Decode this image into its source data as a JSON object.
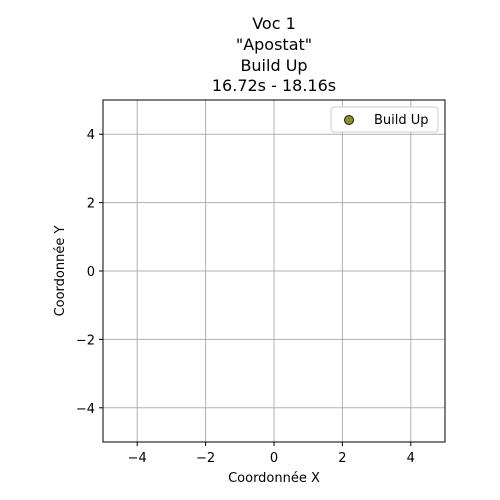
{
  "chart_data": {
    "type": "scatter",
    "title_lines": [
      "Voc 1",
      "\"Apostat\"",
      "Build Up",
      "16.72s - 18.16s"
    ],
    "xlabel": "Coordonnée X",
    "ylabel": "Coordonnée Y",
    "xlim": [
      -5,
      5
    ],
    "ylim": [
      -5,
      5
    ],
    "x_ticks": [
      -4,
      -2,
      0,
      2,
      4
    ],
    "y_ticks": [
      -4,
      -2,
      0,
      2,
      4
    ],
    "x_tick_labels": [
      "−4",
      "−2",
      "0",
      "2",
      "4"
    ],
    "y_tick_labels": [
      "−4",
      "−2",
      "0",
      "2",
      "4"
    ],
    "grid": true,
    "legend_position": "top-right",
    "series": [
      {
        "name": "Build Up",
        "color": "#8c8c2e",
        "edge_color": "#1a1a1a",
        "points": []
      }
    ]
  }
}
